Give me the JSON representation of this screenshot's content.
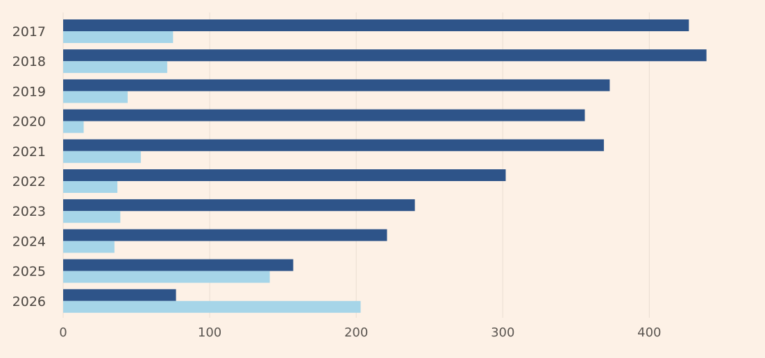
{
  "chart_data": {
    "type": "bar",
    "orientation": "horizontal",
    "categories": [
      "2017",
      "2018",
      "2019",
      "2020",
      "2021",
      "2022",
      "2023",
      "2024",
      "2025",
      "2026"
    ],
    "series": [
      {
        "color": "#2E5489",
        "values": [
          427,
          439,
          373,
          356,
          369,
          302,
          240,
          221,
          157,
          77
        ]
      },
      {
        "color": "#A6D5E8",
        "values": [
          75,
          71,
          44,
          14,
          53,
          37,
          39,
          35,
          141,
          203
        ]
      }
    ],
    "xlim": [
      0,
      460
    ],
    "xticks": [
      0,
      100,
      200,
      300,
      400
    ],
    "grid": true,
    "gridlines": "vertical",
    "legend": "none",
    "title": "",
    "xlabel": "",
    "ylabel": ""
  },
  "colors": {
    "background": "#FDF1E6",
    "gridline": "#E9DDD1"
  }
}
